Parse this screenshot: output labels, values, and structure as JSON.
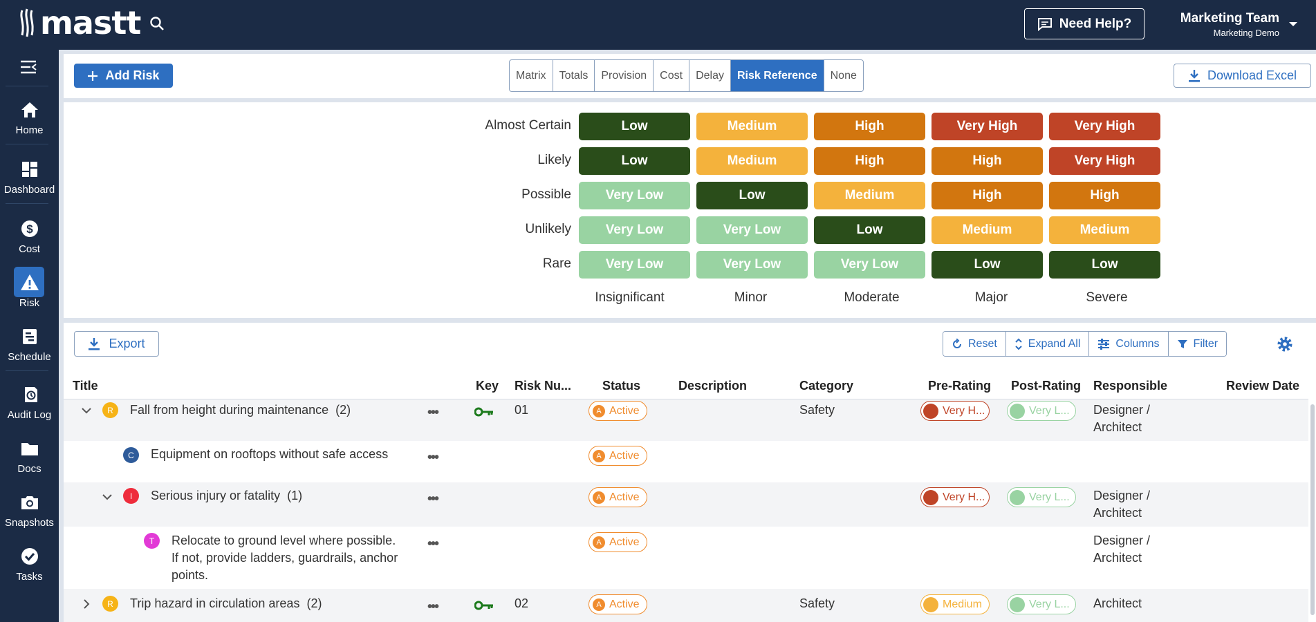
{
  "app": {
    "logo_text": "mastt"
  },
  "header": {
    "help_label": "Need Help?",
    "team_name": "Marketing Team",
    "team_sub": "Marketing Demo"
  },
  "sidebar": {
    "items": [
      {
        "label": "Home",
        "icon": "home-icon"
      },
      {
        "label": "Dashboard",
        "icon": "dashboard-icon"
      },
      {
        "label": "Cost",
        "icon": "dollar-icon"
      },
      {
        "label": "Risk",
        "icon": "warning-icon",
        "active": true
      },
      {
        "label": "Schedule",
        "icon": "schedule-icon"
      },
      {
        "label": "Audit Log",
        "icon": "history-icon"
      },
      {
        "label": "Docs",
        "icon": "folder-icon"
      },
      {
        "label": "Snapshots",
        "icon": "camera-icon"
      },
      {
        "label": "Tasks",
        "icon": "check-circle-icon"
      }
    ]
  },
  "toolbar": {
    "add_risk": "Add Risk",
    "tabs": [
      "Matrix",
      "Totals",
      "Provision",
      "Cost",
      "Delay",
      "Risk Reference",
      "None"
    ],
    "selected_tab": "Risk Reference",
    "download_excel": "Download Excel"
  },
  "matrix": {
    "likelihood": [
      "Almost Certain",
      "Likely",
      "Possible",
      "Unlikely",
      "Rare"
    ],
    "impact": [
      "Insignificant",
      "Minor",
      "Moderate",
      "Major",
      "Severe"
    ],
    "cells": [
      [
        "Low",
        "Medium",
        "High",
        "Very High",
        "Very High"
      ],
      [
        "Low",
        "Medium",
        "High",
        "High",
        "Very High"
      ],
      [
        "Very Low",
        "Low",
        "Medium",
        "High",
        "High"
      ],
      [
        "Very Low",
        "Very Low",
        "Low",
        "Medium",
        "Medium"
      ],
      [
        "Very Low",
        "Very Low",
        "Very Low",
        "Low",
        "Low"
      ]
    ],
    "colors": {
      "Very Low": "#99d3a2",
      "Low": "#2a4d1a",
      "Medium": "#f4b23c",
      "High": "#d2760f",
      "Very High": "#bf4427"
    }
  },
  "table": {
    "export": "Export",
    "tools": [
      "Reset",
      "Expand All",
      "Columns",
      "Filter"
    ],
    "columns": [
      "Title",
      "Key",
      "Risk Nu...",
      "Status",
      "Description",
      "Category",
      "Pre-Rating",
      "Post-Rating",
      "Responsible",
      "Review Date"
    ],
    "rows": [
      {
        "avatar": "R",
        "avatar_color": "#f6b317",
        "title": "Fall from height during maintenance",
        "count": "(2)",
        "key": true,
        "number": "01",
        "status": "Active",
        "status_letter": "A",
        "category": "Safety",
        "pre": "Very H...",
        "pre_color": "#bf4427",
        "post": "Very L...",
        "post_color": "#99d3a2",
        "responsible_1": "Designer /",
        "responsible_2": "Architect",
        "chevron": "down"
      },
      {
        "avatar": "C",
        "avatar_color": "#2e5b9a",
        "title": "Equipment on rooftops without safe access",
        "status": "Active",
        "status_letter": "A"
      },
      {
        "avatar": "I",
        "avatar_color": "#ee2c3c",
        "title": "Serious injury or fatality",
        "count": "(1)",
        "status": "Active",
        "status_letter": "A",
        "pre": "Very H...",
        "pre_color": "#bf4427",
        "post": "Very L...",
        "post_color": "#99d3a2",
        "responsible_1": "Designer /",
        "responsible_2": "Architect",
        "chevron": "down"
      },
      {
        "avatar": "T",
        "avatar_color": "#e23ad6",
        "title_1": "Relocate to ground level where possible.",
        "title_2": "If not, provide ladders, guardrails, anchor",
        "title_3": "points.",
        "status": "Active",
        "status_letter": "A",
        "responsible_1": "Designer /",
        "responsible_2": "Architect"
      },
      {
        "avatar": "R",
        "avatar_color": "#f6b317",
        "title": "Trip hazard in circulation areas",
        "count": "(2)",
        "key": true,
        "number": "02",
        "status": "Active",
        "status_letter": "A",
        "category": "Safety",
        "pre": "Medium",
        "pre_color": "#f4b23c",
        "post": "Very L...",
        "post_color": "#99d3a2",
        "responsible_1": "Architect",
        "chevron": "right"
      }
    ]
  }
}
